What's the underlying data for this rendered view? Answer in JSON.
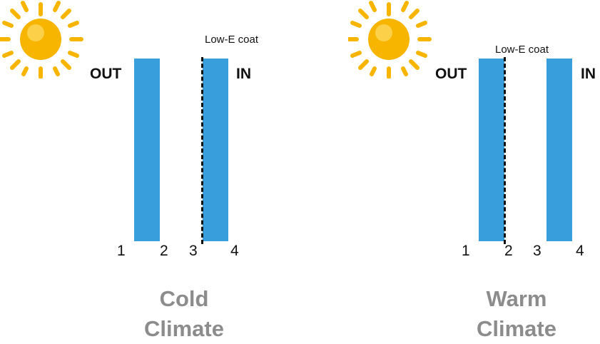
{
  "colors": {
    "pane": "#399fdc",
    "title": "#8c8c8c",
    "sun_core": "#f7b500",
    "sun_ray": "#f7b500"
  },
  "panels": [
    {
      "side_out": "OUT",
      "side_in": "IN",
      "coat_label": "Low-E coat",
      "surfaces": [
        "1",
        "2",
        "3",
        "4"
      ],
      "title_line1": "Cold",
      "title_line2": "Climate"
    },
    {
      "side_out": "OUT",
      "side_in": "IN",
      "coat_label": "Low-E coat",
      "surfaces": [
        "1",
        "2",
        "3",
        "4"
      ],
      "title_line1": "Warm",
      "title_line2": "Climate"
    }
  ]
}
